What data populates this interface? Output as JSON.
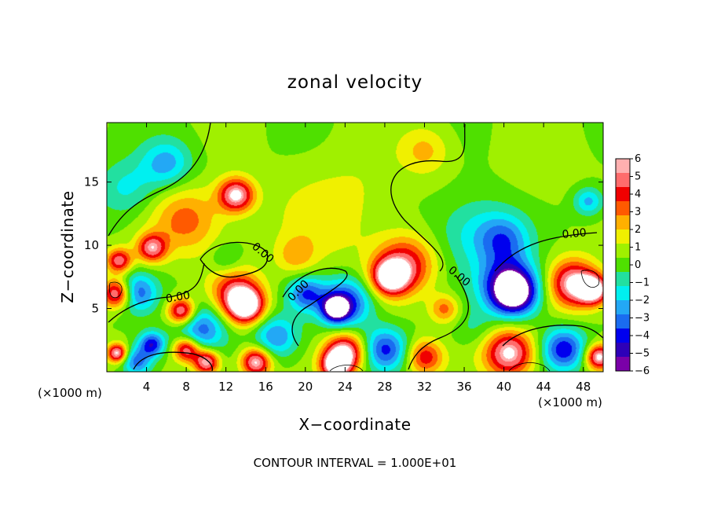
{
  "chart_data": {
    "type": "heatmap",
    "title": "zonal velocity",
    "xlabel": "X−coordinate",
    "ylabel": "Z−coordinate",
    "x_unit": "(×1000 m)",
    "y_unit": "(×1000 m)",
    "xlim": [
      0,
      50
    ],
    "ylim": [
      0,
      19.7
    ],
    "x_ticks": [
      4,
      8,
      12,
      16,
      20,
      24,
      28,
      32,
      36,
      40,
      44,
      48
    ],
    "y_ticks": [
      5,
      10,
      15
    ],
    "colorbar": {
      "ticks": [
        "6",
        "5",
        "4",
        "3",
        "2",
        "1",
        "0",
        "−1",
        "−2",
        "−3",
        "−4",
        "−5",
        "−6"
      ],
      "min": -6,
      "max": 6,
      "colors": [
        "#7a00a8",
        "#2e00b8",
        "#0000ee",
        "#1a6cf0",
        "#23a8f5",
        "#00f0f0",
        "#22e0a0",
        "#4fe000",
        "#a0f000",
        "#f0f000",
        "#ffb000",
        "#ff5a00",
        "#f00000",
        "#ff6c6c",
        "#ffb0b0"
      ]
    },
    "contour_level_labels": [
      "0.00",
      "0.00",
      "0.00",
      "0.00",
      "0.00"
    ],
    "footnote": "CONTOUR INTERVAL = 1.000E+01",
    "features": [
      {
        "x": 13,
        "z": 14,
        "value": 6,
        "r": 1.8
      },
      {
        "x": 8,
        "z": 12,
        "value": 3,
        "r": 3.5
      },
      {
        "x": 4.5,
        "z": 9.8,
        "value": 5,
        "r": 1.5
      },
      {
        "x": 1.2,
        "z": 8.8,
        "value": 5,
        "r": 1.3
      },
      {
        "x": 6,
        "z": 16.5,
        "value": -3,
        "r": 2.5
      },
      {
        "x": 2,
        "z": 14.5,
        "value": -2,
        "r": 3
      },
      {
        "x": 37,
        "z": 11,
        "value": -2,
        "r": 4
      },
      {
        "x": 40,
        "z": 10.5,
        "value": -3,
        "r": 2.5
      },
      {
        "x": 48.5,
        "z": 13.5,
        "value": -3,
        "r": 1.5
      },
      {
        "x": 32,
        "z": 17.5,
        "value": 2,
        "r": 2.5
      },
      {
        "x": 22,
        "z": 12,
        "value": 1.3,
        "r": 5
      },
      {
        "x": 30,
        "z": 8.5,
        "value": 4.5,
        "r": 3
      },
      {
        "x": 28.5,
        "z": 7.5,
        "value": 6,
        "r": 1.8
      },
      {
        "x": 34,
        "z": 5,
        "value": 3,
        "r": 1.5
      },
      {
        "x": 24,
        "z": 5.5,
        "value": -5,
        "r": 2.6
      },
      {
        "x": 23,
        "z": 5,
        "value": -6,
        "r": 1.3
      },
      {
        "x": 20,
        "z": 6.2,
        "value": -4,
        "r": 1.8
      },
      {
        "x": 17,
        "z": 2.8,
        "value": -3.5,
        "r": 2.2
      },
      {
        "x": 41,
        "z": 6.2,
        "value": -6,
        "r": 2.2
      },
      {
        "x": 40.5,
        "z": 7,
        "value": -5,
        "r": 3
      },
      {
        "x": 47,
        "z": 7,
        "value": 6,
        "r": 2.5
      },
      {
        "x": 49,
        "z": 6.5,
        "value": 6,
        "r": 1.5
      },
      {
        "x": 14,
        "z": 5.2,
        "value": 6,
        "r": 1.8
      },
      {
        "x": 13,
        "z": 6.2,
        "value": 4.5,
        "r": 2.5
      },
      {
        "x": 7.5,
        "z": 4.8,
        "value": 6,
        "r": 1.4
      },
      {
        "x": 9.5,
        "z": 3.5,
        "value": -4,
        "r": 2.5
      },
      {
        "x": 3,
        "z": 6.3,
        "value": -4,
        "r": 2
      },
      {
        "x": 1,
        "z": 6.2,
        "value": 6,
        "r": 1.5
      },
      {
        "x": 4.5,
        "z": 2.2,
        "value": -5,
        "r": 1.3
      },
      {
        "x": 8,
        "z": 1.8,
        "value": 5.5,
        "r": 1.3
      },
      {
        "x": 10,
        "z": 0.8,
        "value": 6,
        "r": 1.3
      },
      {
        "x": 24,
        "z": 1.6,
        "value": 6,
        "r": 2
      },
      {
        "x": 23,
        "z": 0.5,
        "value": 6,
        "r": 1.5
      },
      {
        "x": 28,
        "z": 1.8,
        "value": -4.5,
        "r": 2.2
      },
      {
        "x": 32,
        "z": 1.2,
        "value": 4,
        "r": 1.8
      },
      {
        "x": 40.5,
        "z": 1.5,
        "value": 6,
        "r": 2.5
      },
      {
        "x": 46,
        "z": 1.8,
        "value": -5,
        "r": 2.2
      },
      {
        "x": 49.5,
        "z": 1.2,
        "value": 6,
        "r": 1.3
      },
      {
        "x": 3,
        "z": 0.8,
        "value": -4,
        "r": 1.5
      },
      {
        "x": 1,
        "z": 1.5,
        "value": 6,
        "r": 1
      },
      {
        "x": 15,
        "z": 0.8,
        "value": 6,
        "r": 1.5
      },
      {
        "x": 19,
        "z": 9.2,
        "value": 2,
        "r": 2
      },
      {
        "x": 12,
        "z": 9,
        "value": -1.5,
        "r": 1.5
      },
      {
        "x": 26,
        "z": 15,
        "value": 0.5,
        "r": 4
      },
      {
        "x": 44,
        "z": 16,
        "value": 0.5,
        "r": 4
      },
      {
        "x": 37,
        "z": 3.5,
        "value": -1,
        "r": 2
      }
    ]
  }
}
